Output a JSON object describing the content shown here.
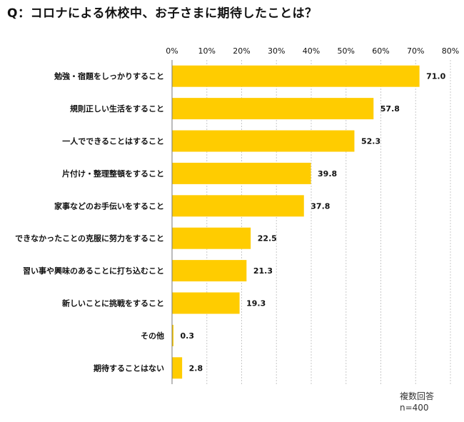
{
  "title": "Q：コロナによる休校中、お子さまに期待したことは？",
  "chart_data": {
    "type": "bar",
    "orientation": "horizontal",
    "title": "Q：コロナによる休校中、お子さまに期待したことは？",
    "categories": [
      "勉強・宿題をしっかりすること",
      "規則正しい生活をすること",
      "一人でできることはすること",
      "片付け・整理整頓をすること",
      "家事などのお手伝いをすること",
      "できなかったことの克服に努力をすること",
      "習い事や興味のあることに打ち込むこと",
      "新しいことに挑戦をすること",
      "その他",
      "期待することはない"
    ],
    "values": [
      71.0,
      57.8,
      52.3,
      39.8,
      37.8,
      22.5,
      21.3,
      19.3,
      0.3,
      2.8
    ],
    "value_labels": [
      "71.0",
      "57.8",
      "52.3",
      "39.8",
      "37.8",
      "22.5",
      "21.3",
      "19.3",
      "0.3",
      "2.8"
    ],
    "xlim": [
      0,
      80
    ],
    "ticks": [
      "0%",
      "10%",
      "20%",
      "30%",
      "40%",
      "50%",
      "60%",
      "70%",
      "80%"
    ],
    "grid": true,
    "bar_color": "#FFCC00"
  },
  "notes": {
    "answer_type": "複数回答",
    "sample_size": "n=400"
  }
}
